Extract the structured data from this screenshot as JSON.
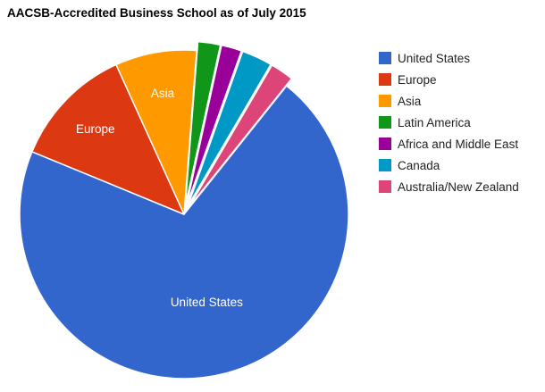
{
  "chart_data": {
    "type": "pie",
    "title": "AACSB-Accredited Business School as of July 2015",
    "legend_position": "right",
    "exploded_slices": [
      "Latin America",
      "Africa and Middle East",
      "Canada",
      "Australia/New Zealand"
    ],
    "slices": [
      {
        "label": "United States",
        "value": 70.5,
        "color": "#3366cc",
        "show_label": true
      },
      {
        "label": "Europe",
        "value": 12,
        "color": "#dc3912",
        "show_label": true
      },
      {
        "label": "Asia",
        "value": 8,
        "color": "#ff9900",
        "show_label": true
      },
      {
        "label": "Latin America",
        "value": 2.2,
        "color": "#109618",
        "show_label": false
      },
      {
        "label": "Africa and Middle East",
        "value": 2,
        "color": "#990099",
        "show_label": false
      },
      {
        "label": "Canada",
        "value": 3,
        "color": "#0099c6",
        "show_label": false
      },
      {
        "label": "Australia/New Zealand",
        "value": 2.3,
        "color": "#dd4477",
        "show_label": false
      }
    ]
  }
}
